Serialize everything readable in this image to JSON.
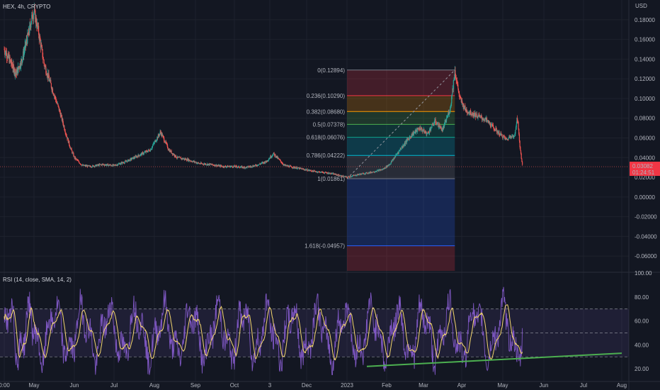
{
  "header": {
    "symbol_label": "HEX, 4h, CRYPTO"
  },
  "price_axis": {
    "unit": "USD",
    "ticks": [
      "0.18000",
      "0.16000",
      "0.14000",
      "0.12000",
      "0.10000",
      "0.08000",
      "0.06000",
      "0.04000",
      "0.02000",
      "0.00000",
      "-0.02000",
      "-0.04000",
      "-0.06000"
    ],
    "range": [
      -0.075,
      0.195
    ],
    "current_price": "0.03082",
    "countdown": "01:24:51"
  },
  "time_axis": {
    "ticks": [
      {
        "label": "0:00",
        "t": 0
      },
      {
        "label": "May",
        "t": 1
      },
      {
        "label": "Jun",
        "t": 2
      },
      {
        "label": "Jul",
        "t": 3
      },
      {
        "label": "Aug",
        "t": 4
      },
      {
        "label": "Sep",
        "t": 5
      },
      {
        "label": "Oct",
        "t": 6
      },
      {
        "label": "3",
        "t": 7
      },
      {
        "label": "Dec",
        "t": 8
      },
      {
        "label": "2023",
        "t": 9
      },
      {
        "label": "Feb",
        "t": 10
      },
      {
        "label": "Mar",
        "t": 11
      },
      {
        "label": "Apr",
        "t": 12
      },
      {
        "label": "May",
        "t": 13
      },
      {
        "label": "Jun",
        "t": 14
      },
      {
        "label": "Jul",
        "t": 15
      },
      {
        "label": "Aug",
        "t": 16
      }
    ]
  },
  "fibonacci": {
    "t_start": 9.0,
    "t_end": 11.82,
    "levels": [
      {
        "label": "0(0.12894)",
        "value": 0.12894,
        "color": "#787b86"
      },
      {
        "label": "0.236(0.10290)",
        "value": 0.1029,
        "color": "#f23645"
      },
      {
        "label": "0.382(0.08680)",
        "value": 0.0868,
        "color": "#ff9800"
      },
      {
        "label": "0.5(0.07378)",
        "value": 0.07378,
        "color": "#4caf50"
      },
      {
        "label": "0.618(0.06076)",
        "value": 0.06076,
        "color": "#089981"
      },
      {
        "label": "0.786(0.04222)",
        "value": 0.04222,
        "color": "#00bcd4"
      },
      {
        "label": "1(0.01861)",
        "value": 0.01861,
        "color": "#787b86"
      },
      {
        "label": "1.618(-0.04957)",
        "value": -0.04957,
        "color": "#2962ff"
      }
    ],
    "bottom_value": -0.075
  },
  "rsi": {
    "label": "RSI (14, close, SMA, 14, 2)",
    "ticks": [
      "100.00",
      "80.00",
      "60.00",
      "40.00",
      "20.00"
    ],
    "range": [
      10,
      100
    ],
    "upper_band": 70,
    "lower_band": 30,
    "middle": 50
  },
  "colors": {
    "background": "#131722",
    "up": "#26a69a",
    "down": "#ef5350",
    "rsi_line": "#7e57c2",
    "rsi_ma": "#f5d76e",
    "trendline": "#4caf50",
    "price_label": "#f23645"
  },
  "chart_data": [
    {
      "type": "candlestick",
      "title": "HEX, 4h, CRYPTO",
      "x_unit": "months from Apr 2022",
      "y_unit": "USD",
      "ylim": [
        -0.075,
        0.195
      ],
      "series": [
        {
          "x": [
            0.0,
            0.2,
            0.4,
            0.6,
            0.75,
            0.85,
            0.92,
            1.0,
            1.1,
            1.25,
            1.45,
            1.65,
            1.8,
            1.9,
            2.0,
            2.2,
            2.4,
            2.7,
            3.0,
            3.3,
            3.6,
            3.9,
            4.15,
            4.35,
            4.55,
            4.8,
            5.1,
            5.4,
            5.7,
            6.0,
            6.3,
            6.6,
            6.9,
            7.1,
            7.4,
            7.8,
            8.2,
            8.6,
            9.0,
            9.3,
            9.6,
            9.9,
            10.1,
            10.3,
            10.5,
            10.7,
            10.9,
            11.1,
            11.3,
            11.5,
            11.7,
            11.82,
            11.95,
            12.1,
            12.3,
            12.6,
            12.9,
            13.1,
            13.2,
            13.28,
            13.35,
            13.42,
            13.48
          ],
          "close": [
            0.15,
            0.138,
            0.125,
            0.14,
            0.158,
            0.17,
            0.182,
            0.188,
            0.17,
            0.135,
            0.11,
            0.085,
            0.063,
            0.05,
            0.04,
            0.032,
            0.031,
            0.033,
            0.032,
            0.036,
            0.042,
            0.048,
            0.066,
            0.048,
            0.04,
            0.038,
            0.034,
            0.033,
            0.031,
            0.031,
            0.03,
            0.032,
            0.036,
            0.044,
            0.032,
            0.029,
            0.026,
            0.024,
            0.02,
            0.023,
            0.025,
            0.028,
            0.034,
            0.045,
            0.055,
            0.064,
            0.07,
            0.064,
            0.077,
            0.068,
            0.09,
            0.128,
            0.1,
            0.088,
            0.084,
            0.078,
            0.065,
            0.058,
            0.063,
            0.06,
            0.082,
            0.05,
            0.031
          ]
        }
      ]
    },
    {
      "type": "line",
      "title": "RSI (14, close, SMA, 14, 2)",
      "ylim": [
        10,
        100
      ],
      "bands": [
        30,
        50,
        70
      ],
      "trendline": {
        "x": [
          9.5,
          13.0,
          16.0
        ],
        "y": [
          22,
          28,
          33
        ]
      }
    }
  ]
}
